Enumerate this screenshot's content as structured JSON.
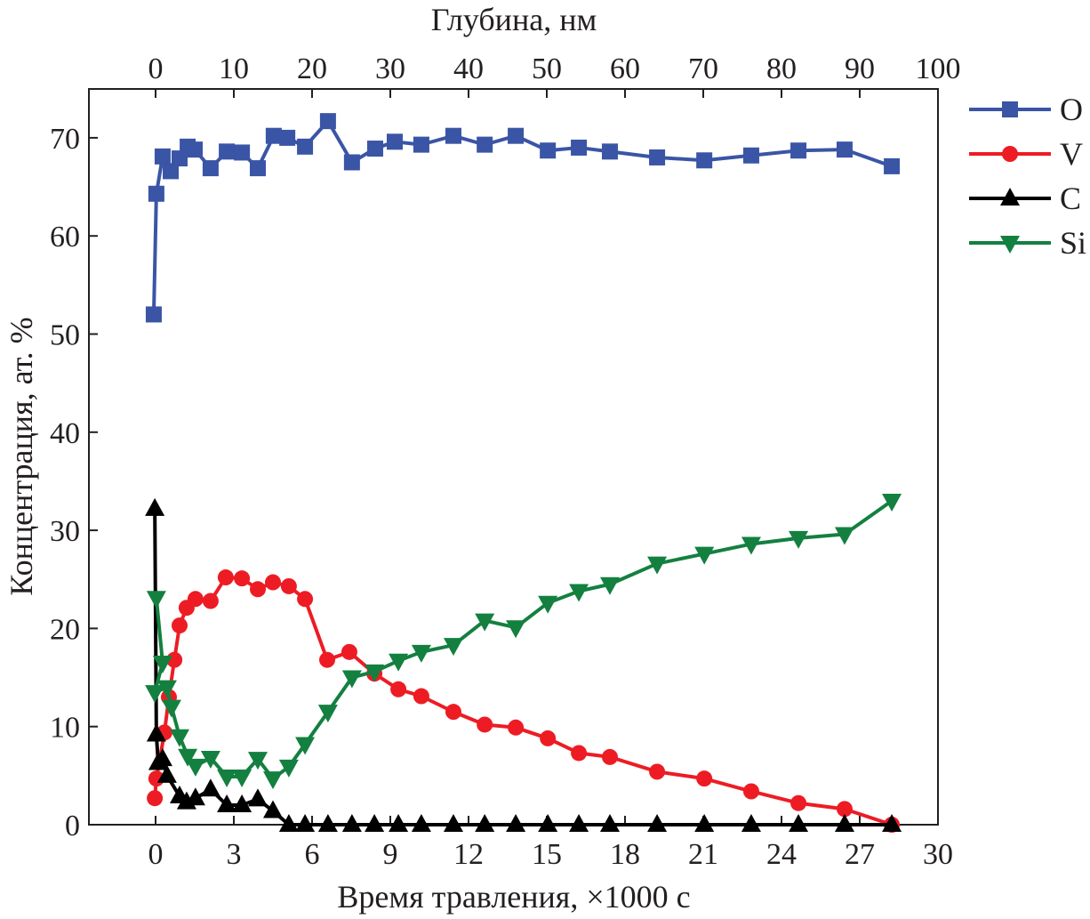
{
  "chart_data": {
    "type": "line",
    "xlabel": "Время травления, ×1000 с",
    "ylabel": "Концентрация, ат. %",
    "x2label": "Глубина, нм",
    "xlim": [
      -2.6,
      30
    ],
    "ylim": [
      0,
      74.9
    ],
    "x2lim": [
      -8.7,
      100
    ],
    "xticks": [
      0,
      3,
      6,
      9,
      12,
      15,
      18,
      21,
      24,
      27,
      30
    ],
    "yticks": [
      0,
      10,
      20,
      30,
      40,
      50,
      60,
      70
    ],
    "x2ticks": [
      0,
      10,
      20,
      30,
      40,
      50,
      60,
      70,
      80,
      90,
      100
    ],
    "legend_position": "right-outside-top",
    "series": [
      {
        "name": "O",
        "color": "#3a55a5",
        "marker": "square",
        "x": [
          -0.07,
          0.03,
          0.27,
          0.58,
          0.92,
          1.23,
          1.5,
          2.11,
          2.73,
          3.31,
          3.92,
          4.53,
          5.05,
          5.73,
          6.61,
          7.53,
          8.42,
          9.17,
          10.19,
          11.42,
          12.62,
          13.81,
          15.04,
          16.23,
          17.42,
          19.23,
          21.04,
          22.84,
          24.65,
          26.42,
          28.23
        ],
        "y": [
          52,
          64.3,
          68.1,
          66.6,
          67.9,
          69.1,
          68.8,
          66.9,
          68.6,
          68.5,
          66.9,
          70.2,
          70,
          69.1,
          71.7,
          67.5,
          68.9,
          69.6,
          69.3,
          70.2,
          69.3,
          70.2,
          68.7,
          69,
          68.6,
          68,
          67.7,
          68.2,
          68.7,
          68.8,
          67.1
        ]
      },
      {
        "name": "V",
        "color": "#ed1c24",
        "marker": "circle",
        "x": [
          -0.03,
          0.03,
          0.34,
          0.51,
          0.72,
          0.92,
          1.19,
          1.53,
          2.11,
          2.69,
          3.31,
          3.92,
          4.5,
          5.11,
          5.73,
          6.58,
          7.43,
          8.39,
          9.31,
          10.19,
          11.42,
          12.62,
          13.81,
          15.04,
          16.23,
          17.42,
          19.23,
          21.04,
          22.84,
          24.65,
          26.42,
          28.23
        ],
        "y": [
          2.7,
          4.7,
          9.4,
          13,
          16.8,
          20.3,
          22.1,
          23,
          22.8,
          25.2,
          25.1,
          24,
          24.7,
          24.3,
          23,
          16.8,
          17.6,
          15.4,
          13.8,
          13.1,
          11.5,
          10.2,
          9.9,
          8.8,
          7.3,
          6.9,
          5.4,
          4.7,
          3.4,
          2.2,
          1.6,
          0
        ]
      },
      {
        "name": "C",
        "color": "#000000",
        "marker": "triangle-up",
        "x": [
          -0.03,
          0.03,
          0.1,
          0.27,
          0.44,
          0.92,
          1.19,
          1.53,
          2.11,
          2.73,
          3.31,
          3.92,
          4.5,
          5.11,
          5.73,
          6.61,
          7.53,
          8.39,
          9.31,
          10.19,
          11.42,
          12.62,
          13.81,
          15.04,
          16.23,
          17.42,
          19.23,
          21.04,
          22.84,
          24.65,
          26.42,
          28.23
        ],
        "y": [
          32.2,
          9.2,
          6.3,
          6.7,
          5,
          2.9,
          2.3,
          2.7,
          3.6,
          2,
          2,
          2.6,
          1.4,
          0,
          0,
          0,
          0,
          0,
          0,
          0,
          0,
          0,
          0,
          0,
          0,
          0,
          0,
          0,
          0,
          0,
          0,
          0
        ]
      },
      {
        "name": "Si",
        "color": "#138040",
        "marker": "triangle-down",
        "x": [
          0.03,
          0.27,
          -0.03,
          0.44,
          0.61,
          0.92,
          1.23,
          1.53,
          2.11,
          2.73,
          3.31,
          3.92,
          4.5,
          5.11,
          5.73,
          6.61,
          7.53,
          8.39,
          9.31,
          10.19,
          11.42,
          12.62,
          13.81,
          15.04,
          16.23,
          17.42,
          19.23,
          21.04,
          22.84,
          24.65,
          26.42,
          28.23
        ],
        "y": [
          23.1,
          16.5,
          13.5,
          14,
          12,
          9,
          7,
          6,
          6.8,
          4.9,
          4.9,
          6.7,
          4.7,
          5.9,
          8.2,
          11.5,
          15,
          15.6,
          16.7,
          17.6,
          18.3,
          20.8,
          20.1,
          22.6,
          23.8,
          24.5,
          26.6,
          27.6,
          28.6,
          29.2,
          29.6,
          33
        ]
      }
    ]
  }
}
